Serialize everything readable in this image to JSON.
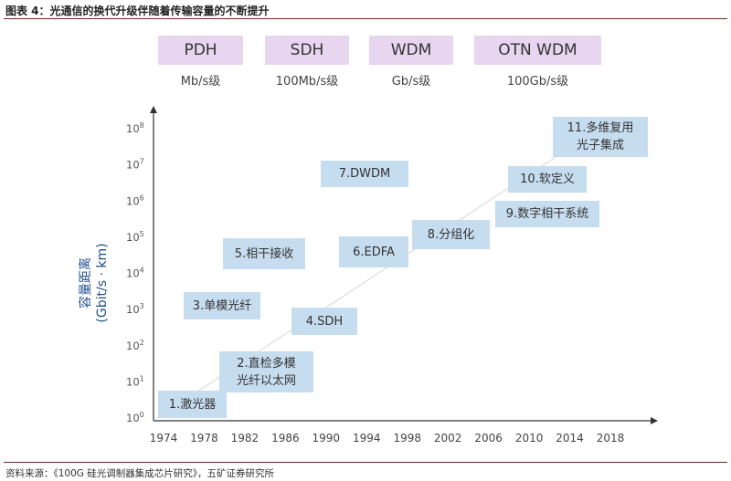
{
  "figure": {
    "title": "图表 4：光通信的换代升级伴随着传输容量的不断提升",
    "source": "资料来源：《100G 硅光调制器集成芯片研究》，五矿证券研究所"
  },
  "technologies": [
    {
      "name": "PDH",
      "rate": "Mb/s级"
    },
    {
      "name": "SDH",
      "rate": "100Mb/s级"
    },
    {
      "name": "WDM",
      "rate": "Gb/s级"
    },
    {
      "name": "OTN WDM",
      "rate": "100Gb/s级"
    }
  ],
  "colors": {
    "tech_tab": "#e8d5f0",
    "milestone_box": "#c6dcef",
    "axis": "#333333",
    "trend_line": "#dddddd",
    "ylabel": "#1f4e8c",
    "rule": "#6b2a24"
  },
  "chart_data": {
    "type": "scatter",
    "ylabel_line1": "容量距离",
    "ylabel_line2": "(Gbit/s · km)",
    "y_scale": "log",
    "y_base": "10",
    "y_exponents": [
      "0",
      "1",
      "2",
      "3",
      "4",
      "5",
      "6",
      "7",
      "8"
    ],
    "ylim": [
      1,
      100000000
    ],
    "xlim": [
      1974,
      2018
    ],
    "x_ticks": [
      "1974",
      "1978",
      "1982",
      "1986",
      "1990",
      "1994",
      "1998",
      "2002",
      "2006",
      "2010",
      "2014",
      "2018"
    ],
    "trend_line": {
      "from": [
        1974,
        1
      ],
      "to": [
        2018,
        100000000
      ]
    },
    "milestones": [
      {
        "id": "1",
        "label": "1.激光器"
      },
      {
        "id": "2",
        "label": "2.直检多模\n光纤以太网"
      },
      {
        "id": "3",
        "label": "3.单模光纤"
      },
      {
        "id": "4",
        "label": "4.SDH"
      },
      {
        "id": "5",
        "label": "5.相干接收"
      },
      {
        "id": "6",
        "label": "6.EDFA"
      },
      {
        "id": "7",
        "label": "7.DWDM"
      },
      {
        "id": "8",
        "label": "8.分组化"
      },
      {
        "id": "9",
        "label": "9.数字相干系统"
      },
      {
        "id": "10",
        "label": "10.软定义"
      },
      {
        "id": "11",
        "label": "11.多维复用\n光子集成"
      }
    ]
  }
}
